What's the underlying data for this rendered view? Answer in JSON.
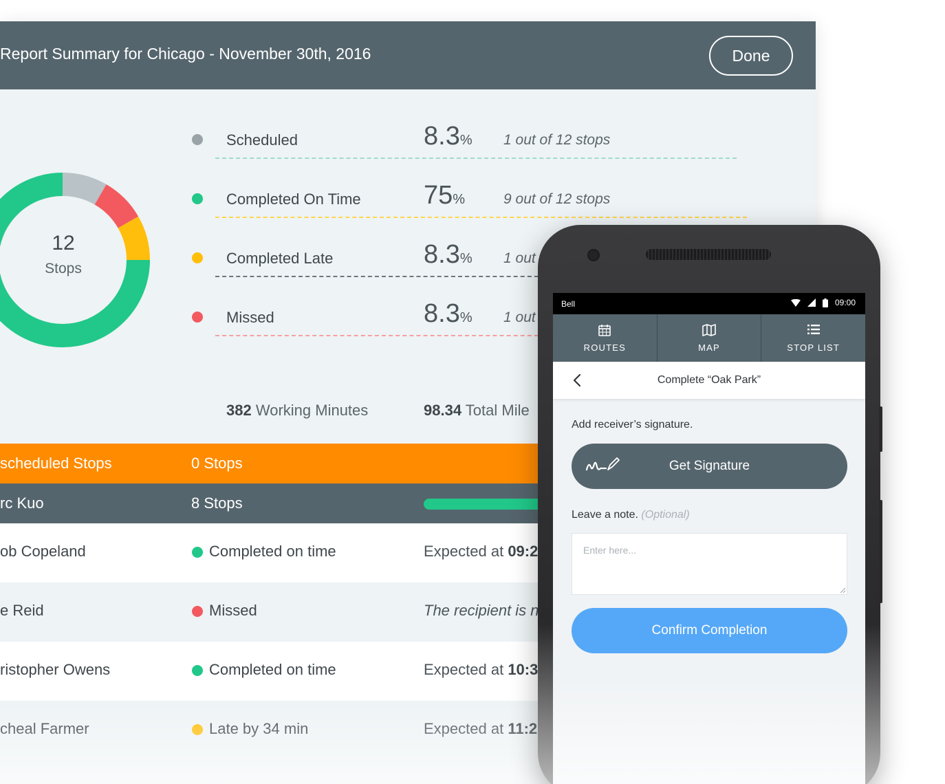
{
  "report": {
    "title": "Report Summary for Chicago - November 30th, 2016",
    "done_label": "Done",
    "donut": {
      "count": "12",
      "unit": "Stops",
      "segments": [
        {
          "name": "Completed On Time",
          "fraction": 0.75,
          "color": "#21c889"
        },
        {
          "name": "Scheduled",
          "fraction": 0.0833,
          "color": "#b9c2c7"
        },
        {
          "name": "Missed",
          "fraction": 0.0833,
          "color": "#f25a5f"
        },
        {
          "name": "Completed Late",
          "fraction": 0.0833,
          "color": "#ffbe0b"
        }
      ]
    },
    "legend": [
      {
        "label": "Scheduled",
        "percent": "8.3",
        "percent_unit": "%",
        "detail": "1 out of 12 stops",
        "color": "#9aa3a8",
        "line_color": "#9fdcc8"
      },
      {
        "label": "Completed On Time",
        "percent": "75",
        "percent_unit": "%",
        "detail": "9 out of 12 stops",
        "color": "#21c889",
        "line_color": "#ffd54f"
      },
      {
        "label": "Completed Late",
        "percent": "8.3",
        "percent_unit": "%",
        "detail": "1 out",
        "color": "#ffbe0b",
        "line_color": "#6d767b"
      },
      {
        "label": "Missed",
        "percent": "8.3",
        "percent_unit": "%",
        "detail": "1 out",
        "color": "#f25a5f",
        "line_color": "#f5a0a3"
      }
    ],
    "totals": {
      "minutes_value": "382",
      "minutes_label": "Working Minutes",
      "miles_value": "98.34",
      "miles_label": "Total Mile"
    },
    "unscheduled": {
      "name": "scheduled Stops",
      "count": "0 Stops"
    },
    "driver": {
      "name": "rc Kuo",
      "count": "8 Stops",
      "progress": 1.0
    },
    "stops": [
      {
        "name": "ob Copeland",
        "status": "Completed on time",
        "status_color": "#21c889",
        "info_prefix": "Expected at ",
        "info_value": "09:2",
        "italic": false
      },
      {
        "name": "e Reid",
        "status": "Missed",
        "status_color": "#f25a5f",
        "info_prefix": "The recipient is no",
        "info_value": "",
        "italic": true
      },
      {
        "name": "ristopher Owens",
        "status": "Completed on time",
        "status_color": "#21c889",
        "info_prefix": "Expected at ",
        "info_value": "10:3",
        "italic": false
      },
      {
        "name": "cheal Farmer",
        "status": "Late by 34 min",
        "status_color": "#ffbe0b",
        "info_prefix": "Expected at ",
        "info_value": "11:2",
        "italic": false
      }
    ]
  },
  "phone": {
    "status_bar": {
      "carrier": "Bell",
      "time": "09:00"
    },
    "tabs": [
      {
        "label": "ROUTES",
        "icon": "calendar-icon"
      },
      {
        "label": "MAP",
        "icon": "map-icon"
      },
      {
        "label": "STOP LIST",
        "icon": "list-icon"
      }
    ],
    "nav_title": "Complete “Oak Park”",
    "signature_label": "Add receiver’s signature.",
    "signature_button": "Get Signature",
    "note_label": "Leave a note.",
    "note_optional": "(Optional)",
    "note_placeholder": "Enter here...",
    "note_value": "",
    "confirm_button": "Confirm Completion",
    "accent_color": "#55a8f7"
  }
}
